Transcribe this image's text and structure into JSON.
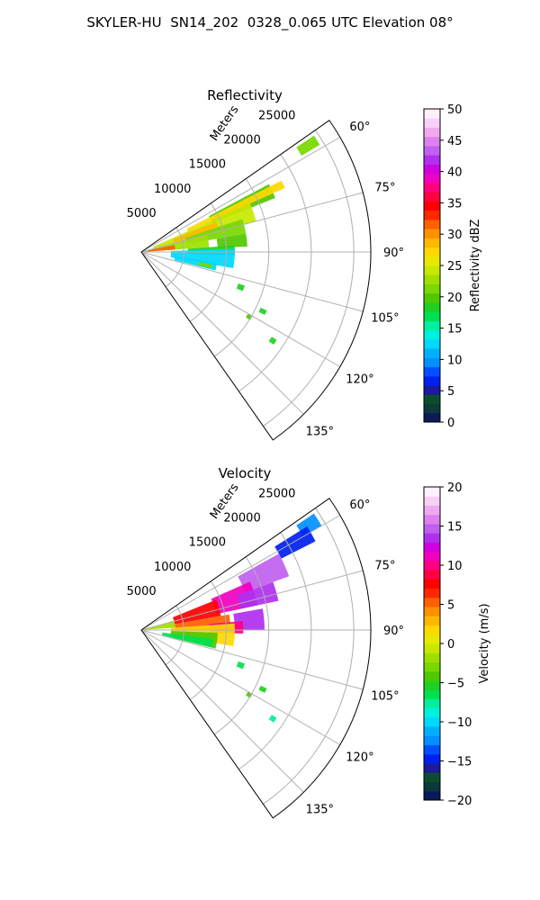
{
  "figure": {
    "title": "SKYLER-HU  SN14_202  0328_0.065 UTC Elevation 08°"
  },
  "chart_data": [
    {
      "type": "heatmap",
      "subtype": "polar-sector-radar",
      "title": "Reflectivity",
      "radial_axis_label": "Meters",
      "radial_ticks": [
        "5000",
        "10000",
        "15000",
        "20000",
        "25000"
      ],
      "radial_range": [
        0,
        27000
      ],
      "azimuth_range_deg": [
        55,
        145
      ],
      "azimuth_ticks": [
        "60°",
        "75°",
        "90°",
        "105°",
        "120°",
        "135°"
      ],
      "grid": true,
      "colorbar": {
        "label": "Reflectivity dBZ",
        "range": [
          0,
          50
        ],
        "ticks": [
          "0",
          "5",
          "10",
          "15",
          "20",
          "25",
          "30",
          "35",
          "40",
          "45",
          "50"
        ],
        "colors": [
          "#0a1a5a",
          "#0c3a3a",
          "#0d4d2e",
          "#1a1a9a",
          "#0020f0",
          "#0050ff",
          "#0090ff",
          "#00b0ff",
          "#00d8ff",
          "#00f0e0",
          "#00f0a0",
          "#00e050",
          "#20d020",
          "#50c800",
          "#78d800",
          "#a0e000",
          "#c8e800",
          "#e8e800",
          "#ffd800",
          "#ffb800",
          "#ff9000",
          "#ff6000",
          "#ff2800",
          "#ff0000",
          "#ff0040",
          "#ff0080",
          "#f000c0",
          "#d000e0",
          "#b030f0",
          "#c060f0",
          "#e080f0",
          "#f0a8f0",
          "#f8d0f8",
          "#fff0ff"
        ]
      },
      "echo_regions": [
        {
          "az": [
            62,
            68
          ],
          "r": [
            9000,
            17000
          ],
          "value": 20
        },
        {
          "az": [
            63,
            66
          ],
          "r": [
            6000,
            18500
          ],
          "value": 27
        },
        {
          "az": [
            66,
            75
          ],
          "r": [
            1500,
            14000
          ],
          "value": 24
        },
        {
          "az": [
            68,
            74
          ],
          "r": [
            4000,
            9500
          ],
          "value": 29
        },
        {
          "az": [
            72,
            80
          ],
          "r": [
            5500,
            12500
          ],
          "value": 22
        },
        {
          "az": [
            75,
            86
          ],
          "r": [
            500,
            8000
          ],
          "value": 23
        },
        {
          "az": [
            78,
            86
          ],
          "r": [
            800,
            4000
          ],
          "value": 32
        },
        {
          "az": [
            80,
            87
          ],
          "r": [
            9000,
            12500
          ],
          "value": 20
        },
        {
          "az": [
            86,
            92
          ],
          "r": [
            5500,
            11000
          ],
          "value": 19
        },
        {
          "az": [
            88,
            100
          ],
          "r": [
            3500,
            11000
          ],
          "value": 13
        },
        {
          "az": [
            98,
            104
          ],
          "r": [
            4000,
            9000
          ],
          "value": 12
        },
        {
          "az": [
            100,
            103
          ],
          "r": [
            6800,
            8500
          ],
          "value": 22
        },
        {
          "az": [
            108,
            111
          ],
          "r": [
            12000,
            12800
          ],
          "value": 18
        },
        {
          "az": [
            115,
            117
          ],
          "r": [
            15500,
            16300
          ],
          "value": 18
        },
        {
          "az": [
            120,
            122
          ],
          "r": [
            14500,
            15100
          ],
          "value": 20
        },
        {
          "az": [
            123,
            125
          ],
          "r": [
            18300,
            19000
          ],
          "value": 18
        },
        {
          "az": [
            56,
            59
          ],
          "r": [
            22000,
            24500
          ],
          "value": 22
        }
      ]
    },
    {
      "type": "heatmap",
      "subtype": "polar-sector-radar",
      "title": "Velocity",
      "radial_axis_label": "Meters",
      "radial_ticks": [
        "5000",
        "10000",
        "15000",
        "20000",
        "25000"
      ],
      "radial_range": [
        0,
        27000
      ],
      "azimuth_range_deg": [
        55,
        145
      ],
      "azimuth_ticks": [
        "60°",
        "75°",
        "90°",
        "105°",
        "120°",
        "135°"
      ],
      "grid": true,
      "colorbar": {
        "label": "Velocity (m/s)",
        "range": [
          -20,
          20
        ],
        "ticks": [
          "−20",
          "−15",
          "−10",
          "−5",
          "0",
          "5",
          "10",
          "15",
          "20"
        ],
        "colors": [
          "#0a1a5a",
          "#0c3a3a",
          "#0d4d2e",
          "#1a1a9a",
          "#0020f0",
          "#0050ff",
          "#0090ff",
          "#00b0ff",
          "#00d8ff",
          "#00f0e0",
          "#00f0a0",
          "#00e050",
          "#20d020",
          "#50c800",
          "#78d800",
          "#a0e000",
          "#c8e800",
          "#e8e800",
          "#ffd800",
          "#ffb800",
          "#ff9000",
          "#ff6000",
          "#ff2800",
          "#ff0000",
          "#ff0040",
          "#ff0080",
          "#f000c0",
          "#d000e0",
          "#b030f0",
          "#c060f0",
          "#e080f0",
          "#f0a8f0",
          "#f8d0f8",
          "#fff0ff"
        ]
      },
      "echo_regions": [
        {
          "az": [
            56,
            60
          ],
          "r": [
            22000,
            24500
          ],
          "value": -12
        },
        {
          "az": [
            58,
            63
          ],
          "r": [
            18500,
            23000
          ],
          "value": -15
        },
        {
          "az": [
            61,
            70
          ],
          "r": [
            13000,
            18500
          ],
          "value": 15
        },
        {
          "az": [
            66,
            78
          ],
          "r": [
            9000,
            14000
          ],
          "value": 11
        },
        {
          "az": [
            70,
            78
          ],
          "r": [
            12000,
            16500
          ],
          "value": 14
        },
        {
          "az": [
            80,
            90
          ],
          "r": [
            11000,
            14500
          ],
          "value": 13
        },
        {
          "az": [
            68,
            80
          ],
          "r": [
            4000,
            9500
          ],
          "value": 8
        },
        {
          "az": [
            80,
            90
          ],
          "r": [
            4000,
            10500
          ],
          "value": 5
        },
        {
          "az": [
            85,
            92
          ],
          "r": [
            8000,
            12000
          ],
          "value": 10
        },
        {
          "az": [
            74,
            86
          ],
          "r": [
            500,
            4000
          ],
          "value": -2
        },
        {
          "az": [
            86,
            100
          ],
          "r": [
            3500,
            11000
          ],
          "value": 2
        },
        {
          "az": [
            92,
            104
          ],
          "r": [
            3500,
            9000
          ],
          "value": -4
        },
        {
          "az": [
            97,
            104
          ],
          "r": [
            2500,
            8500
          ],
          "value": -6
        },
        {
          "az": [
            108,
            111
          ],
          "r": [
            12000,
            12800
          ],
          "value": -6
        },
        {
          "az": [
            115,
            117
          ],
          "r": [
            15500,
            16300
          ],
          "value": -5
        },
        {
          "az": [
            120,
            122
          ],
          "r": [
            14500,
            15100
          ],
          "value": -4
        },
        {
          "az": [
            123,
            125
          ],
          "r": [
            18300,
            19000
          ],
          "value": -8
        }
      ]
    }
  ]
}
